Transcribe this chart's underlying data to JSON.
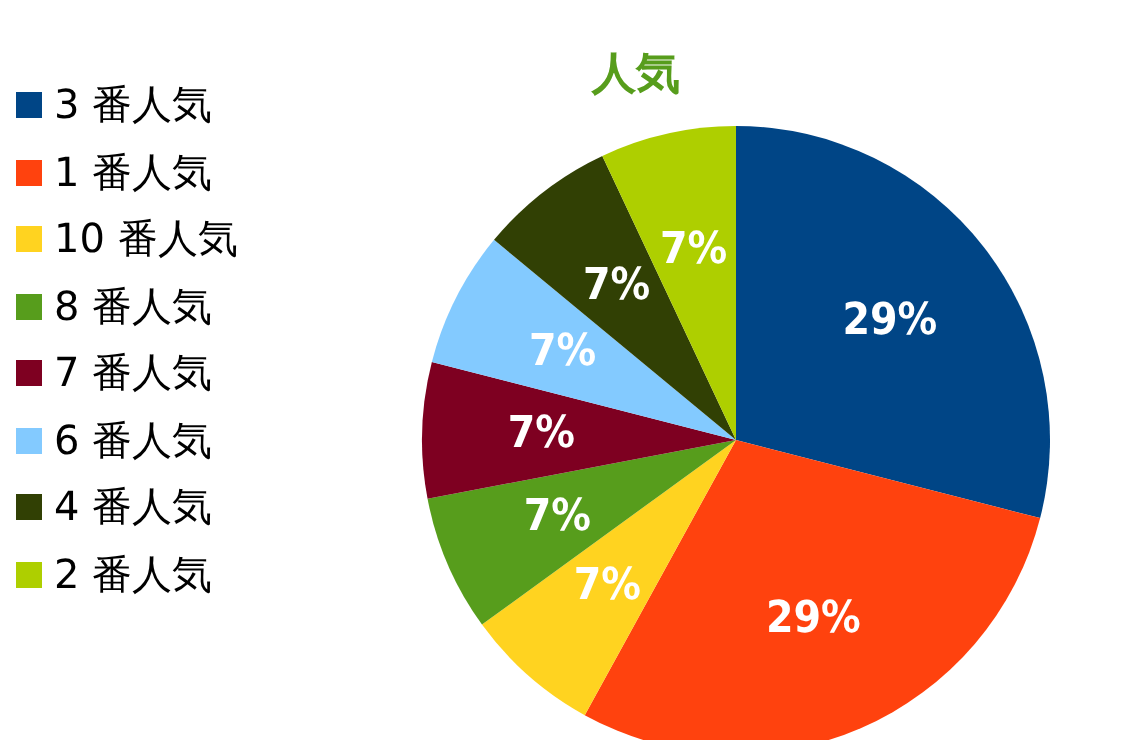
{
  "chart_data": {
    "type": "pie",
    "title": "人気",
    "categories": [
      "3 番人気",
      "1 番人気",
      "10 番人気",
      "8 番人気",
      "7 番人気",
      "6 番人気",
      "4 番人気",
      "2 番人気"
    ],
    "values": [
      29,
      29,
      7,
      7,
      7,
      7,
      7,
      7
    ],
    "value_labels": [
      "29%",
      "29%",
      "7%",
      "7%",
      "7%",
      "7%",
      "7%",
      "7%"
    ],
    "colors": [
      "#004586",
      "#ff420e",
      "#ffd320",
      "#579d1c",
      "#7e0021",
      "#83caff",
      "#314004",
      "#aecf00"
    ],
    "legend": "left"
  }
}
